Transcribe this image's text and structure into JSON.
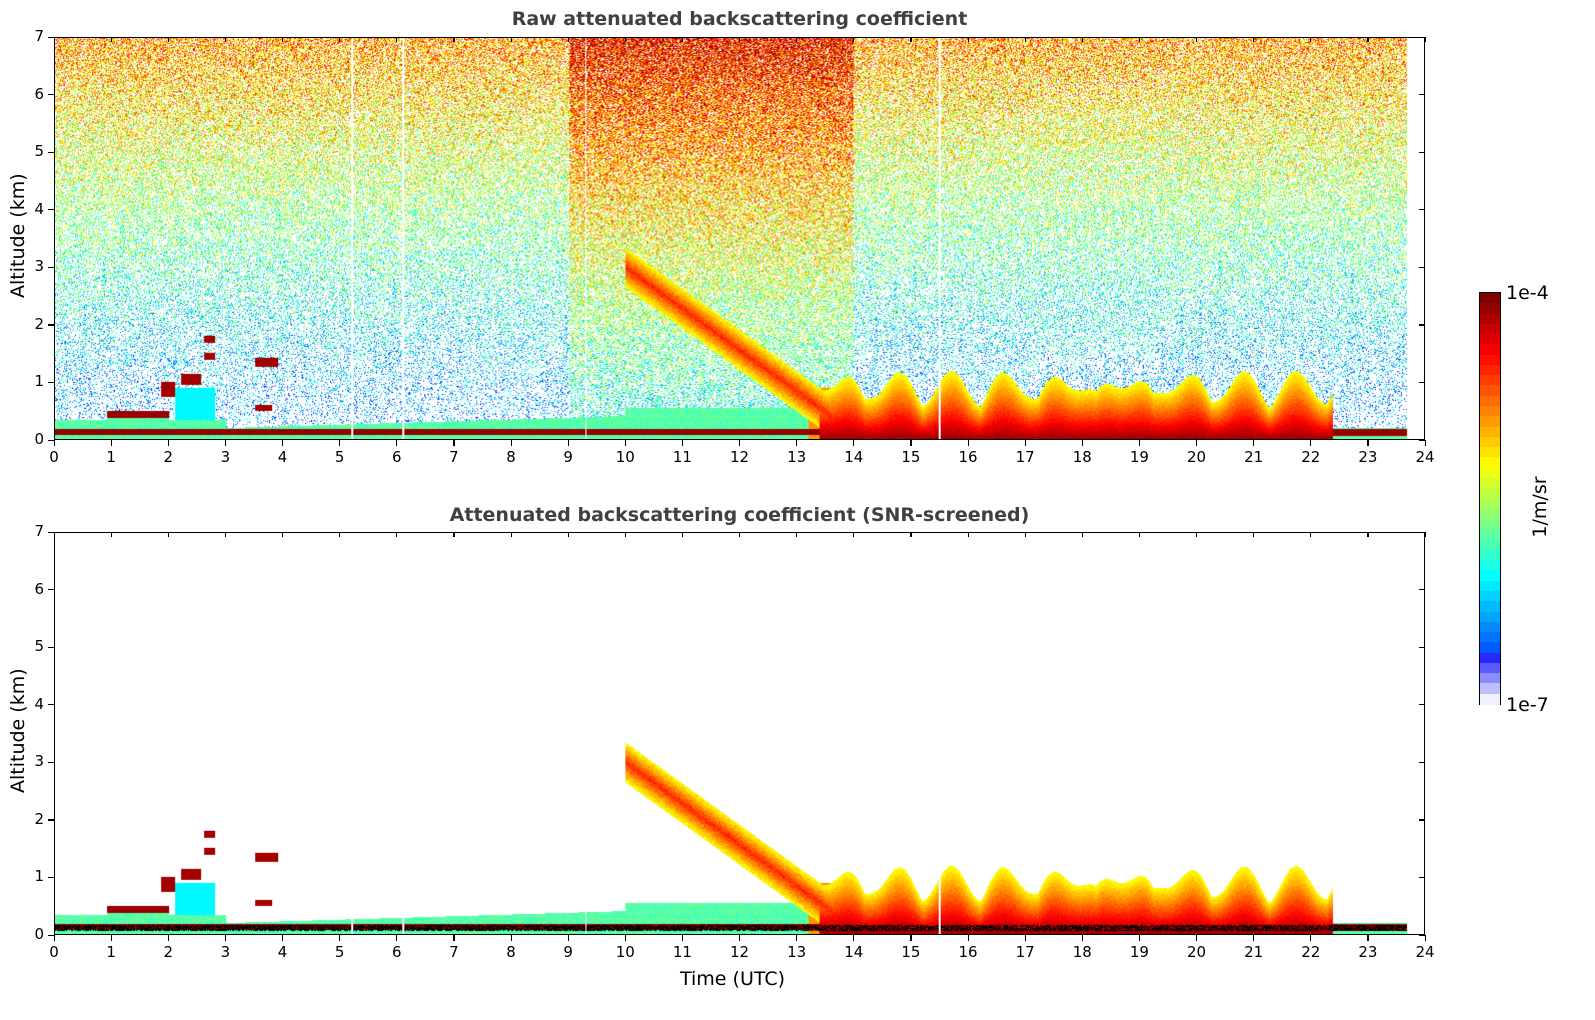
{
  "chart_data": [
    {
      "type": "heatmap",
      "title": "Raw attenuated backscattering coefficient",
      "xlabel": "",
      "ylabel": "Altitude (km)",
      "xlim": [
        0,
        24
      ],
      "ylim": [
        0,
        7
      ],
      "xticks": [
        "0",
        "1",
        "2",
        "3",
        "4",
        "5",
        "6",
        "7",
        "8",
        "9",
        "10",
        "11",
        "12",
        "13",
        "14",
        "15",
        "16",
        "17",
        "18",
        "19",
        "20",
        "21",
        "22",
        "23",
        "24"
      ],
      "yticks": [
        "0",
        "1",
        "2",
        "3",
        "4",
        "5",
        "6",
        "7"
      ],
      "data_end_hour": 23.7,
      "noise": true,
      "features": [
        {
          "name": "surface layer",
          "x": [
            0,
            23.7
          ],
          "alt_km": 0.15
        },
        {
          "name": "residual layer",
          "x": [
            0.9,
            2.0
          ],
          "alt_km": 0.45
        },
        {
          "name": "low clouds",
          "x": [
            1.8,
            2.9
          ],
          "alt_km": [
            0.8,
            1.8
          ]
        },
        {
          "name": "cloud",
          "x": [
            3.5,
            3.9
          ],
          "alt_km": 1.35
        },
        {
          "name": "descending aerosol plume",
          "x": [
            10.0,
            13.5
          ],
          "alt_km": [
            3.0,
            0.4
          ]
        },
        {
          "name": "afternoon boundary layer",
          "x": [
            13.4,
            22.4
          ],
          "alt_km": [
            0.6,
            1.3
          ]
        }
      ]
    },
    {
      "type": "heatmap",
      "title": "Attenuated backscattering coefficient (SNR-screened)",
      "xlabel": "Time (UTC)",
      "ylabel": "Altitude (km)",
      "xlim": [
        0,
        24
      ],
      "ylim": [
        0,
        7
      ],
      "xticks": [
        "0",
        "1",
        "2",
        "3",
        "4",
        "5",
        "6",
        "7",
        "8",
        "9",
        "10",
        "11",
        "12",
        "13",
        "14",
        "15",
        "16",
        "17",
        "18",
        "19",
        "20",
        "21",
        "22",
        "23",
        "24"
      ],
      "yticks": [
        "0",
        "1",
        "2",
        "3",
        "4",
        "5",
        "6",
        "7"
      ],
      "data_end_hour": 23.7,
      "noise": false,
      "features": [
        {
          "name": "surface layer",
          "x": [
            0,
            23.7
          ],
          "alt_km": 0.15
        },
        {
          "name": "residual layer",
          "x": [
            0.9,
            2.0
          ],
          "alt_km": 0.45
        },
        {
          "name": "low clouds",
          "x": [
            1.8,
            2.9
          ],
          "alt_km": [
            0.8,
            1.8
          ]
        },
        {
          "name": "cloud",
          "x": [
            3.5,
            3.9
          ],
          "alt_km": 1.35
        },
        {
          "name": "descending aerosol plume",
          "x": [
            10.0,
            13.5
          ],
          "alt_km": [
            3.0,
            0.4
          ]
        },
        {
          "name": "afternoon boundary layer",
          "x": [
            13.4,
            22.4
          ],
          "alt_km": [
            0.6,
            1.3
          ]
        }
      ]
    }
  ],
  "colorbar": {
    "label": "1/m/sr",
    "max_label": "1e-4",
    "min_label": "1e-7",
    "range": [
      1e-07,
      0.0001
    ],
    "scale": "log",
    "colormap": "jet"
  }
}
